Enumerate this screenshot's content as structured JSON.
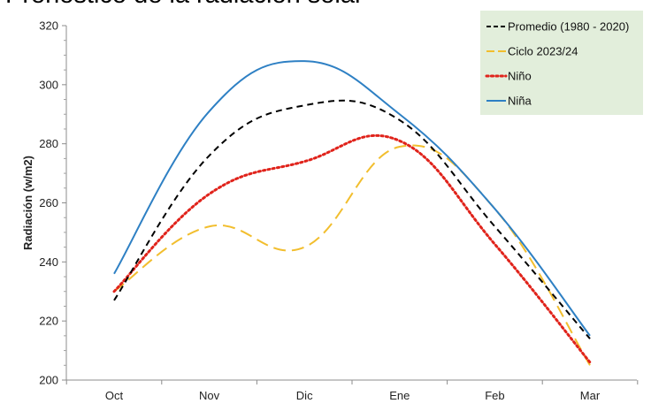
{
  "title_fragment": "Pronóstico de la radiación solar",
  "chart_data": {
    "type": "line",
    "title": "",
    "xlabel": "",
    "ylabel": "Radiación (w/m2)",
    "categories": [
      "Oct",
      "Nov",
      "Dic",
      "Ene",
      "Feb",
      "Mar"
    ],
    "ylim": [
      200,
      320
    ],
    "yticks": [
      200,
      220,
      240,
      260,
      280,
      300,
      320
    ],
    "grid": false,
    "legend_position": "top-right",
    "series": [
      {
        "name": "Promedio (1980 - 2020)",
        "color": "#000000",
        "dash": "dashed",
        "values": [
          227,
          276,
          293,
          288,
          252,
          214
        ]
      },
      {
        "name": "Ciclo 2023/24",
        "color": "#f2be2e",
        "dash": "long-dashed",
        "values": [
          230,
          252,
          245,
          279,
          258,
          205
        ]
      },
      {
        "name": "Niño",
        "color": "#e0231b",
        "dash": "dotted",
        "values": [
          230,
          263,
          274,
          281,
          246,
          206
        ]
      },
      {
        "name": "Niña",
        "color": "#2e80c4",
        "dash": "solid",
        "values": [
          236,
          291,
          308,
          290,
          258,
          215
        ]
      }
    ]
  }
}
